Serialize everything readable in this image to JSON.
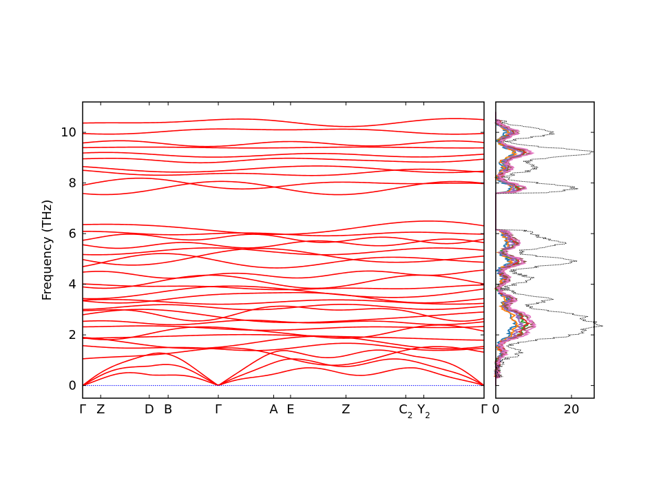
{
  "chart_data": [
    {
      "type": "line",
      "title": "",
      "xlabel": "",
      "ylabel": "Frequency (THz)",
      "ylim": [
        -0.5,
        11.2
      ],
      "yticks": [
        0,
        2,
        4,
        6,
        8,
        10
      ],
      "grid": false,
      "line_color": "#ff0000",
      "zero_line_color": "#0000ff",
      "kpath": [
        {
          "label": "Γ",
          "sub": "",
          "pos": 0.0
        },
        {
          "label": "Z",
          "sub": "",
          "pos": 0.045
        },
        {
          "label": "D",
          "sub": "",
          "pos": 0.166
        },
        {
          "label": "B",
          "sub": "",
          "pos": 0.213
        },
        {
          "label": "Γ",
          "sub": "",
          "pos": 0.338
        },
        {
          "label": "A",
          "sub": "",
          "pos": 0.476
        },
        {
          "label": "E",
          "sub": "",
          "pos": 0.518
        },
        {
          "label": "Z",
          "sub": "",
          "pos": 0.656
        },
        {
          "label": "C",
          "sub": "2",
          "pos": 0.805
        },
        {
          "label": "Y",
          "sub": "2",
          "pos": 0.85
        },
        {
          "label": "Γ",
          "sub": "",
          "pos": 1.0
        }
      ],
      "bands_at_gamma": {
        "acoustic": [
          0,
          0,
          0
        ],
        "optical_low": [
          1.2,
          1.5,
          1.7,
          1.9,
          2.1,
          2.3,
          2.5,
          2.7,
          2.9,
          3.1,
          3.3,
          3.5,
          3.7,
          3.9,
          4.1,
          4.4
        ],
        "optical_mid": [
          4.9,
          5.1,
          5.3,
          5.6,
          5.8,
          6.0,
          6.2
        ],
        "optical_high": [
          7.8,
          7.95,
          8.4,
          8.55,
          8.9,
          9.1,
          9.4,
          9.55,
          10.05,
          10.4
        ]
      }
    },
    {
      "type": "line",
      "title": "",
      "xlabel": "",
      "ylabel": "",
      "xlim": [
        0,
        26
      ],
      "xticks": [
        0,
        20
      ],
      "ylim": [
        -0.5,
        11.2
      ],
      "total_dos_style": "black dotted",
      "series_colors": [
        "#1f77b4",
        "#ff7f0e",
        "#2ca02c",
        "#d62728",
        "#9467bd",
        "#8c564b",
        "#e377c2"
      ],
      "total_dos_peaks": [
        {
          "freq": 1.3,
          "value": 6
        },
        {
          "freq": 2.0,
          "value": 18
        },
        {
          "freq": 2.4,
          "value": 24
        },
        {
          "freq": 2.8,
          "value": 19
        },
        {
          "freq": 3.4,
          "value": 13
        },
        {
          "freq": 4.2,
          "value": 9
        },
        {
          "freq": 4.9,
          "value": 20
        },
        {
          "freq": 5.6,
          "value": 16
        },
        {
          "freq": 6.0,
          "value": 8
        },
        {
          "freq": 7.8,
          "value": 20
        },
        {
          "freq": 8.6,
          "value": 10
        },
        {
          "freq": 9.2,
          "value": 25
        },
        {
          "freq": 10.0,
          "value": 15
        }
      ]
    }
  ]
}
